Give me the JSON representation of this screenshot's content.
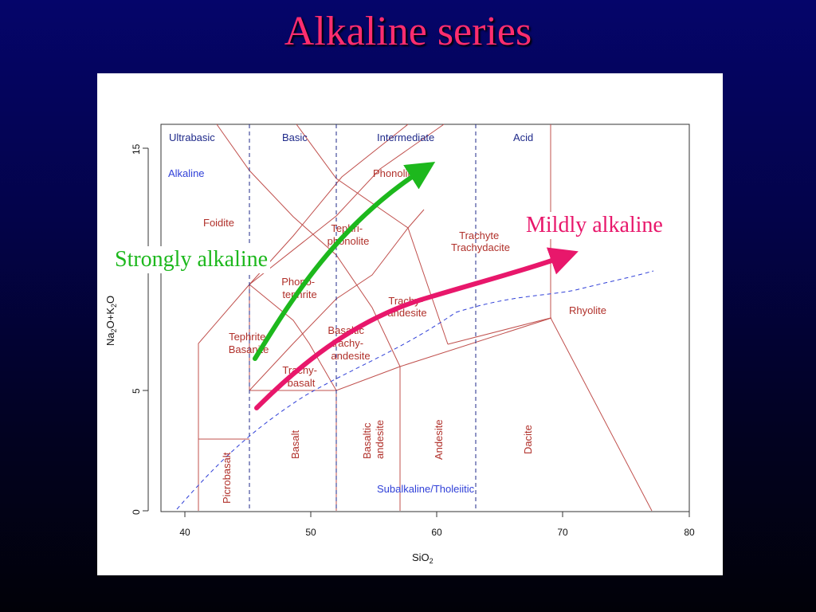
{
  "slide": {
    "title": "Alkaline series"
  },
  "diagram": {
    "type": "TAS (total alkali vs silica) classification diagram",
    "x_axis": {
      "label": "SiO",
      "sub": "2",
      "min": 35,
      "max": 80,
      "ticks": [
        "40",
        "50",
        "60",
        "70",
        "80"
      ]
    },
    "y_axis": {
      "label_parts": [
        "Na",
        "2",
        "O+K",
        "2",
        "O"
      ],
      "min": 0,
      "max": 16,
      "ticks": [
        "0",
        "5",
        "15"
      ]
    },
    "silica_groups": [
      "Ultrabasic",
      "Basic",
      "Intermediate",
      "Acid"
    ],
    "series_labels": {
      "alkaline": "Alkaline",
      "subalkaline": "Subalkaline/Tholeiitic"
    },
    "fields": {
      "foidite": "Foidite",
      "phonolite": "Phonolite",
      "tephriphonolite": [
        "Tephri-",
        "phonolite"
      ],
      "trachyte": [
        "Trachyte",
        "Trachydacite"
      ],
      "phonotephrite": [
        "Phono-",
        "tephrite"
      ],
      "trachyandesite": [
        "Trachy-",
        "andesite"
      ],
      "rhyolite": "Rhyolite",
      "tephrite": [
        "Tephrite",
        "Basanite"
      ],
      "basaltic_trachyandesite": [
        "Basaltic",
        "trachy-",
        "andesite"
      ],
      "trachybasalt": [
        "Trachy-",
        "basalt"
      ],
      "picrobasalt": "Picrobasalt",
      "basalt": "Basalt",
      "basaltic_andesite": [
        "Basaltic",
        "andesite"
      ],
      "andesite": "Andesite",
      "dacite": "Dacite"
    },
    "annotations": {
      "strongly_alkaline": {
        "text": "Strongly alkaline",
        "color": "#1db81d"
      },
      "mildly_alkaline": {
        "text": "Mildly alkaline",
        "color": "#e8176b"
      }
    },
    "colors": {
      "title": "#ff2d6f",
      "field_lines": "#c0504d",
      "group_lines": "#1f2a8a",
      "divider_curve": "#3040d8"
    }
  }
}
